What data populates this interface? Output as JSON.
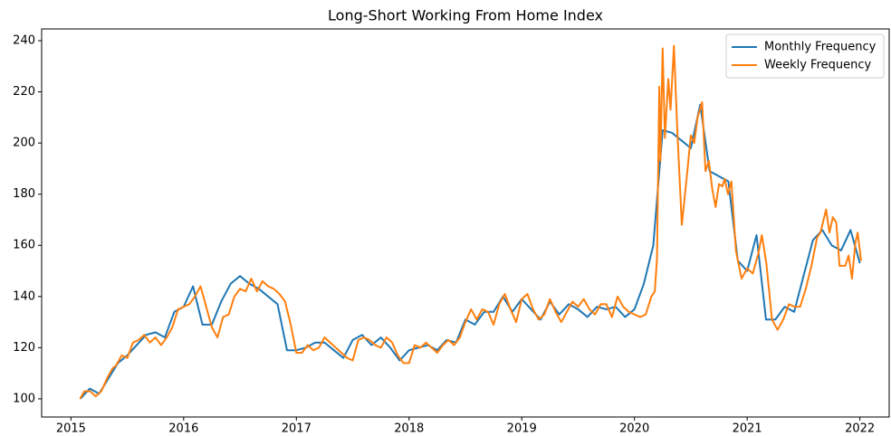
{
  "chart_data": {
    "type": "line",
    "title": "Long-Short Working From Home Index",
    "xlim": [
      2014.74,
      2022.26
    ],
    "xticks": [
      2015,
      2016,
      2017,
      2018,
      2019,
      2020,
      2021,
      2022
    ],
    "ylim": [
      92.9,
      244.6
    ],
    "yticks": [
      100,
      120,
      140,
      160,
      180,
      200,
      220,
      240
    ],
    "grid": false,
    "legend": "upper right",
    "series": [
      {
        "name": "Monthly Frequency",
        "color": "#1f77b4",
        "x": [
          2015.083,
          2015.167,
          2015.25,
          2015.333,
          2015.417,
          2015.5,
          2015.583,
          2015.667,
          2015.75,
          2015.833,
          2015.917,
          2016.0,
          2016.083,
          2016.167,
          2016.25,
          2016.333,
          2016.417,
          2016.5,
          2016.583,
          2016.667,
          2016.75,
          2016.833,
          2016.917,
          2017.0,
          2017.083,
          2017.167,
          2017.25,
          2017.333,
          2017.417,
          2017.5,
          2017.583,
          2017.667,
          2017.75,
          2017.833,
          2017.917,
          2018.0,
          2018.083,
          2018.167,
          2018.25,
          2018.333,
          2018.417,
          2018.5,
          2018.583,
          2018.667,
          2018.75,
          2018.833,
          2018.917,
          2019.0,
          2019.083,
          2019.167,
          2019.25,
          2019.333,
          2019.417,
          2019.5,
          2019.583,
          2019.667,
          2019.75,
          2019.833,
          2019.917,
          2020.0,
          2020.083,
          2020.167,
          2020.25,
          2020.333,
          2020.417,
          2020.5,
          2020.583,
          2020.667,
          2020.75,
          2020.833,
          2020.917,
          2021.0,
          2021.083,
          2021.167,
          2021.25,
          2021.333,
          2021.417,
          2021.5,
          2021.583,
          2021.667,
          2021.75,
          2021.833,
          2021.917,
          2022.0
        ],
        "values": [
          100,
          104,
          102,
          108,
          114,
          117,
          121,
          125,
          126,
          124,
          134,
          136,
          144,
          129,
          129,
          138,
          145,
          148,
          145,
          143,
          140,
          137,
          119,
          119,
          120,
          122,
          122,
          119,
          116,
          123,
          125,
          121,
          124,
          120,
          115,
          119,
          120,
          121,
          119,
          123,
          122,
          131,
          129,
          134,
          134,
          140,
          134,
          139,
          135,
          131,
          138,
          133,
          137,
          135,
          132,
          136,
          135,
          136,
          132,
          135,
          145,
          160,
          205,
          204,
          201,
          198,
          215,
          189,
          187,
          185,
          154,
          150,
          164,
          131,
          131,
          136,
          134,
          148,
          162,
          166,
          160,
          158,
          166,
          153
        ]
      },
      {
        "name": "Weekly Frequency",
        "color": "#ff7f0e",
        "x": [
          2015.08,
          2015.12,
          2015.17,
          2015.22,
          2015.27,
          2015.32,
          2015.37,
          2015.4,
          2015.45,
          2015.5,
          2015.55,
          2015.6,
          2015.65,
          2015.7,
          2015.75,
          2015.8,
          2015.85,
          2015.9,
          2015.95,
          2016.0,
          2016.05,
          2016.1,
          2016.15,
          2016.2,
          2016.25,
          2016.3,
          2016.35,
          2016.4,
          2016.45,
          2016.5,
          2016.55,
          2016.6,
          2016.65,
          2016.7,
          2016.75,
          2016.8,
          2016.85,
          2016.9,
          2016.95,
          2017.0,
          2017.05,
          2017.1,
          2017.15,
          2017.2,
          2017.25,
          2017.3,
          2017.35,
          2017.4,
          2017.45,
          2017.5,
          2017.55,
          2017.6,
          2017.65,
          2017.7,
          2017.75,
          2017.8,
          2017.85,
          2017.9,
          2017.95,
          2018.0,
          2018.05,
          2018.1,
          2018.15,
          2018.2,
          2018.25,
          2018.3,
          2018.35,
          2018.4,
          2018.45,
          2018.5,
          2018.55,
          2018.6,
          2018.65,
          2018.7,
          2018.75,
          2018.8,
          2018.85,
          2018.9,
          2018.95,
          2019.0,
          2019.05,
          2019.1,
          2019.15,
          2019.2,
          2019.25,
          2019.3,
          2019.35,
          2019.4,
          2019.45,
          2019.5,
          2019.55,
          2019.6,
          2019.65,
          2019.7,
          2019.75,
          2019.8,
          2019.85,
          2019.9,
          2019.95,
          2020.0,
          2020.05,
          2020.1,
          2020.15,
          2020.18,
          2020.2,
          2020.22,
          2020.23,
          2020.25,
          2020.27,
          2020.3,
          2020.32,
          2020.35,
          2020.38,
          2020.42,
          2020.46,
          2020.5,
          2020.53,
          2020.56,
          2020.6,
          2020.63,
          2020.66,
          2020.69,
          2020.72,
          2020.75,
          2020.78,
          2020.8,
          2020.83,
          2020.86,
          2020.9,
          2020.95,
          2021.0,
          2021.05,
          2021.1,
          2021.13,
          2021.17,
          2021.22,
          2021.27,
          2021.32,
          2021.37,
          2021.42,
          2021.47,
          2021.52,
          2021.57,
          2021.62,
          2021.65,
          2021.7,
          2021.73,
          2021.76,
          2021.79,
          2021.82,
          2021.87,
          2021.9,
          2021.93,
          2021.96,
          2021.98,
          2022.0,
          2022.01
        ],
        "values": [
          100,
          103,
          103,
          101,
          103,
          108,
          112,
          113,
          117,
          116,
          122,
          123,
          125,
          122,
          124,
          121,
          124,
          128,
          135,
          136,
          137,
          140,
          144,
          136,
          128,
          124,
          132,
          133,
          140,
          143,
          142,
          147,
          142,
          146,
          144,
          143,
          141,
          138,
          129,
          118,
          118,
          121,
          119,
          120,
          124,
          122,
          120,
          118,
          116,
          115,
          123,
          124,
          123,
          121,
          120,
          124,
          122,
          117,
          114,
          114,
          121,
          120,
          122,
          120,
          118,
          121,
          123,
          121,
          124,
          130,
          135,
          131,
          135,
          134,
          129,
          137,
          141,
          135,
          130,
          139,
          141,
          135,
          131,
          133,
          139,
          134,
          130,
          134,
          138,
          136,
          139,
          135,
          133,
          137,
          137,
          132,
          140,
          136,
          134,
          133,
          132,
          133,
          140,
          142,
          155,
          222,
          193,
          237,
          202,
          225,
          213,
          238,
          205,
          168,
          185,
          203,
          200,
          210,
          216,
          189,
          193,
          182,
          175,
          184,
          183,
          186,
          180,
          185,
          158,
          147,
          151,
          149,
          157,
          164,
          153,
          131,
          127,
          131,
          137,
          136,
          136,
          143,
          152,
          163,
          165,
          174,
          165,
          171,
          169,
          152,
          152,
          156,
          147,
          161,
          165,
          158,
          154
        ]
      }
    ]
  }
}
